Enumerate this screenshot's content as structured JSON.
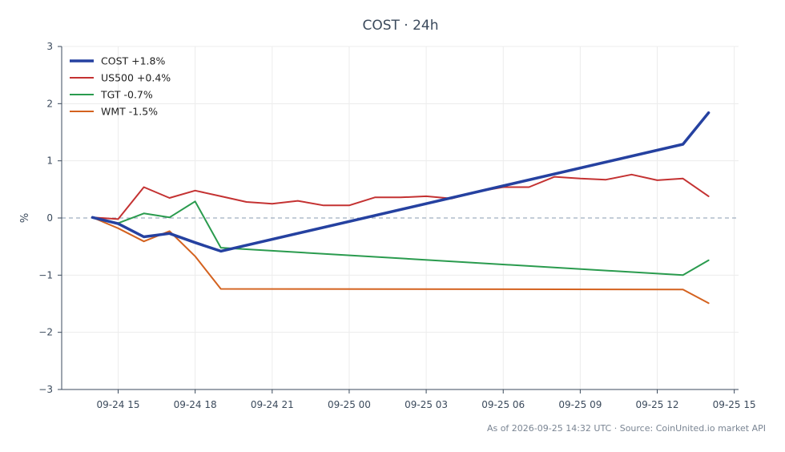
{
  "chart_data": {
    "type": "line",
    "title": "COST · 24h",
    "ylabel": "%",
    "xlabel": "",
    "ylim": [
      -3,
      3
    ],
    "yticks": [
      -3,
      -2,
      -1,
      0,
      1,
      2,
      3
    ],
    "ytick_labels": [
      "−3",
      "−2",
      "−1",
      "0",
      "1",
      "2",
      "3"
    ],
    "xlim": [
      "2026-09-24 12:48",
      "2026-09-25 15:10"
    ],
    "xticks": [
      "2026-09-24 15:00",
      "2026-09-24 18:00",
      "2026-09-24 21:00",
      "2026-09-25 00:00",
      "2026-09-25 03:00",
      "2026-09-25 06:00",
      "2026-09-25 09:00",
      "2026-09-25 12:00",
      "2026-09-25 15:00"
    ],
    "xtick_labels": [
      "09-24 15",
      "09-24 18",
      "09-24 21",
      "09-25 00",
      "09-25 03",
      "09-25 06",
      "09-25 09",
      "09-25 12",
      "09-25 15"
    ],
    "zero_line": true,
    "grid": true,
    "legend_position": "top-left",
    "series": [
      {
        "name": "COST +1.8%",
        "color": "#2541a0",
        "width": 3.5,
        "x": [
          "2026-09-24 14:00",
          "2026-09-24 15:00",
          "2026-09-24 16:00",
          "2026-09-24 17:00",
          "2026-09-24 18:00",
          "2026-09-24 19:00",
          "2026-09-25 13:00",
          "2026-09-25 14:00"
        ],
        "values": [
          0.01,
          -0.1,
          -0.33,
          -0.27,
          -0.43,
          -0.58,
          1.29,
          1.84
        ]
      },
      {
        "name": "US500 +0.4%",
        "color": "#c43232",
        "width": 2,
        "x": [
          "2026-09-24 14:00",
          "2026-09-24 15:00",
          "2026-09-24 16:00",
          "2026-09-24 17:00",
          "2026-09-24 18:00",
          "2026-09-24 19:00",
          "2026-09-24 20:00",
          "2026-09-24 21:00",
          "2026-09-24 22:00",
          "2026-09-24 23:00",
          "2026-09-25 00:00",
          "2026-09-25 01:00",
          "2026-09-25 02:00",
          "2026-09-25 03:00",
          "2026-09-25 04:00",
          "2026-09-25 05:00",
          "2026-09-25 06:00",
          "2026-09-25 07:00",
          "2026-09-25 08:00",
          "2026-09-25 09:00",
          "2026-09-25 10:00",
          "2026-09-25 11:00",
          "2026-09-25 12:00",
          "2026-09-25 13:00",
          "2026-09-25 14:00"
        ],
        "values": [
          0.01,
          -0.02,
          0.54,
          0.35,
          0.48,
          0.38,
          0.28,
          0.25,
          0.3,
          0.22,
          0.22,
          0.36,
          0.36,
          0.38,
          0.34,
          0.46,
          0.54,
          0.54,
          0.72,
          0.69,
          0.67,
          0.76,
          0.66,
          0.69,
          0.38
        ]
      },
      {
        "name": "TGT -0.7%",
        "color": "#2a9b4e",
        "width": 2,
        "x": [
          "2026-09-24 14:00",
          "2026-09-24 15:00",
          "2026-09-24 16:00",
          "2026-09-24 17:00",
          "2026-09-24 18:00",
          "2026-09-24 19:00",
          "2026-09-25 13:00",
          "2026-09-25 14:00"
        ],
        "values": [
          0.01,
          -0.09,
          0.08,
          0.01,
          0.29,
          -0.52,
          -1.0,
          -0.74
        ]
      },
      {
        "name": "WMT -1.5%",
        "color": "#d4621f",
        "width": 2,
        "x": [
          "2026-09-24 14:00",
          "2026-09-24 15:00",
          "2026-09-24 16:00",
          "2026-09-24 17:00",
          "2026-09-24 18:00",
          "2026-09-24 19:00",
          "2026-09-25 13:00",
          "2026-09-25 14:00"
        ],
        "values": [
          0.01,
          -0.18,
          -0.41,
          -0.23,
          -0.67,
          -1.24,
          -1.25,
          -1.49
        ]
      }
    ]
  },
  "footer": "As of 2026-09-25 14:32 UTC · Source: CoinUnited.io market API"
}
